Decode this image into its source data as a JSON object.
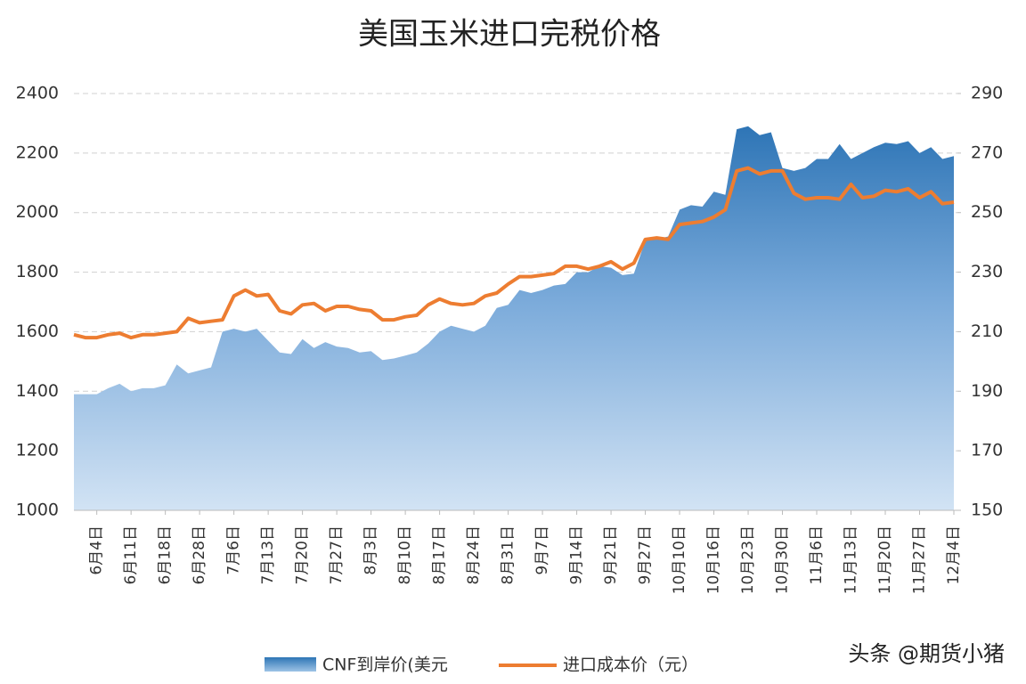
{
  "chart_data": {
    "type": "area_line",
    "title": "美国玉米进口完税价格",
    "watermark": "头条 @期货小猪",
    "categories": [
      null,
      null,
      "6月4日",
      null,
      null,
      "6月11日",
      null,
      null,
      "6月18日",
      null,
      null,
      "6月28日",
      null,
      null,
      "7月6日",
      null,
      null,
      "7月13日",
      null,
      null,
      "7月20日",
      null,
      null,
      "7月27日",
      null,
      null,
      "8月3日",
      null,
      null,
      "8月10日",
      null,
      null,
      "8月17日",
      null,
      null,
      "8月24日",
      null,
      null,
      "8月31日",
      null,
      null,
      "9月7日",
      null,
      null,
      "9月14日",
      null,
      null,
      "9月21日",
      null,
      null,
      "9月27日",
      null,
      null,
      "10月10日",
      null,
      null,
      "10月16日",
      null,
      null,
      "10月23日",
      null,
      null,
      "10月30日",
      null,
      null,
      "11月6日",
      null,
      null,
      "11月13日",
      null,
      null,
      "11月20日",
      null,
      null,
      "11月27日",
      null,
      null,
      "12月4日"
    ],
    "series": [
      {
        "name": "CNF到岸价(美元",
        "color": "#2e75b6",
        "axis": "y",
        "values": [
          1390,
          1390,
          1390,
          1410,
          1425,
          1400,
          1410,
          1410,
          1420,
          1490,
          1460,
          1470,
          1480,
          1600,
          1610,
          1600,
          1610,
          1570,
          1530,
          1525,
          1575,
          1545,
          1565,
          1550,
          1545,
          1530,
          1535,
          1505,
          1510,
          1520,
          1530,
          1560,
          1600,
          1620,
          1610,
          1600,
          1620,
          1680,
          1690,
          1740,
          1730,
          1740,
          1755,
          1760,
          1800,
          1800,
          1820,
          1815,
          1790,
          1795,
          1905,
          1910,
          1920,
          2010,
          2025,
          2020,
          2070,
          2060,
          2280,
          2290,
          2260,
          2270,
          2150,
          2140,
          2150,
          2180,
          2180,
          2230,
          2180,
          2200,
          2220,
          2235,
          2230,
          2240,
          2200,
          2220,
          2180,
          2190
        ]
      },
      {
        "name": "进口成本价（元）",
        "color": "#ed7d31",
        "axis": "y2",
        "values": [
          209,
          208,
          208,
          209,
          209.5,
          208,
          209,
          209,
          209.5,
          210,
          214.5,
          213,
          213.5,
          214,
          222,
          224,
          222,
          222.5,
          217,
          216,
          219,
          219.5,
          217,
          218.5,
          218.5,
          217.5,
          217,
          214,
          214,
          215,
          215.5,
          219,
          221,
          219.5,
          219,
          219.5,
          222,
          223,
          226,
          228.5,
          228.5,
          229,
          229.5,
          232,
          232,
          231,
          232,
          233.5,
          231,
          233,
          241,
          241.5,
          241,
          246,
          246.5,
          247,
          248.5,
          251,
          264,
          265,
          263,
          264,
          264,
          256.5,
          254.5,
          255,
          255,
          254.5,
          259.5,
          255,
          255.5,
          257.5,
          257,
          258,
          255,
          257,
          253,
          253.5
        ]
      }
    ],
    "ylim": [
      1000,
      2400
    ],
    "yticks": [
      1000,
      1200,
      1400,
      1600,
      1800,
      2000,
      2200,
      2400
    ],
    "y2lim": [
      150,
      290
    ],
    "y2ticks": [
      150,
      170,
      190,
      210,
      230,
      250,
      270,
      290
    ],
    "grid": true,
    "legend": "bottom"
  }
}
